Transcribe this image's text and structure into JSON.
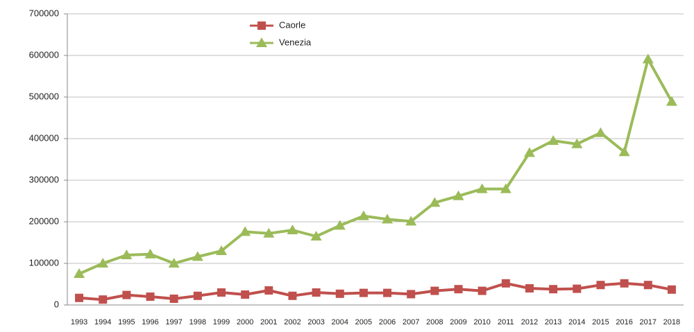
{
  "chart_data": {
    "type": "line",
    "categories": [
      "1993",
      "1994",
      "1995",
      "1996",
      "1997",
      "1998",
      "1999",
      "2000",
      "2001",
      "2002",
      "2003",
      "2004",
      "2005",
      "2006",
      "2007",
      "2008",
      "2009",
      "2010",
      "2011",
      "2012",
      "2013",
      "2014",
      "2015",
      "2016",
      "2017",
      "2018"
    ],
    "series": [
      {
        "name": "Caorle",
        "color": "#c0504d",
        "marker": "square",
        "values": [
          17000,
          13000,
          24000,
          20000,
          15000,
          22000,
          30000,
          25000,
          35000,
          22000,
          30000,
          27000,
          29000,
          29000,
          26000,
          34000,
          38000,
          34000,
          52000,
          40000,
          38000,
          39000,
          48000,
          52000,
          48000,
          37000
        ]
      },
      {
        "name": "Venezia",
        "color": "#9bbb59",
        "marker": "triangle",
        "values": [
          75000,
          100000,
          120000,
          122000,
          100000,
          116000,
          130000,
          176000,
          172000,
          180000,
          165000,
          191000,
          214000,
          206000,
          201000,
          246000,
          262000,
          279000,
          279000,
          366000,
          395000,
          387000,
          414000,
          368000,
          591000,
          489000
        ]
      }
    ],
    "ylim": [
      0,
      700000
    ],
    "yticks": [
      0,
      100000,
      200000,
      300000,
      400000,
      500000,
      600000,
      700000
    ],
    "grid": true,
    "legend": "top-left"
  }
}
